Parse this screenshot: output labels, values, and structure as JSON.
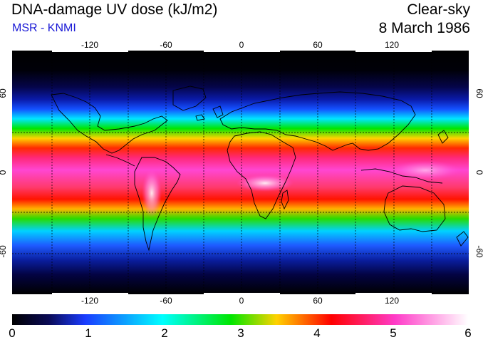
{
  "header": {
    "title": "DNA-damage UV dose (kJ/m2)",
    "source": "MSR - KNMI",
    "condition": "Clear-sky",
    "date": "8 March 1986"
  },
  "map": {
    "longitude_range": [
      -180,
      180
    ],
    "latitude_range": [
      -90,
      90
    ],
    "lon_ticks": [
      "-120",
      "-60",
      "0",
      "60",
      "120"
    ],
    "lat_ticks": [
      "60",
      "0",
      "-60"
    ],
    "gridlines": "dashed, every 30 degrees"
  },
  "colorbar": {
    "range": [
      0,
      6
    ],
    "labels": [
      "0",
      "1",
      "2",
      "3",
      "4",
      "5",
      "6"
    ],
    "colors": [
      "#000000",
      "#0a0a55",
      "#1a3cff",
      "#00ffff",
      "#00e600",
      "#ffd200",
      "#ff0000",
      "#ff3cc8",
      "#ffffff"
    ]
  }
}
